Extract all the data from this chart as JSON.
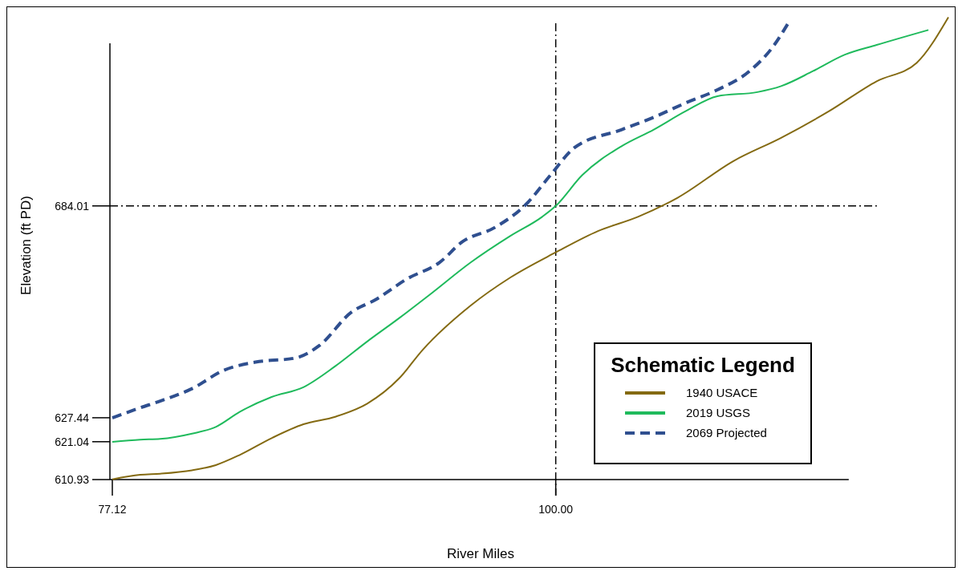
{
  "chart_data": {
    "type": "line",
    "xlabel": "River Miles",
    "ylabel": "Elevation (ft PD)",
    "legend_title": "Schematic Legend",
    "legend": "bottom right",
    "grid": false,
    "xlim": [
      77.12,
      120.3
    ],
    "xticks": [
      77.12,
      {
        "value": 100,
        "label": "100.00"
      }
    ],
    "ylim": [
      610.93,
      736
    ],
    "yticks": [
      610.93,
      621.04,
      627.44,
      684.01
    ],
    "ref_lines": [
      {
        "axis": "x",
        "value": 100,
        "line_style": "dashdot",
        "color": "#000000"
      },
      {
        "axis": "y",
        "value": 684.01,
        "line_style": "dashdot",
        "color": "#000000"
      }
    ],
    "series": [
      {
        "name": "1940 USACE",
        "color": "#846a12",
        "line_style": "solid",
        "x": [
          77.12,
          78.56,
          79.59,
          81.23,
          82.46,
          83.69,
          85.34,
          86.98,
          88.62,
          90.27,
          91.91,
          93.14,
          95.61,
          97.66,
          100.0,
          102.18,
          104.24,
          106.29,
          109.17,
          111.63,
          114.1,
          116.56,
          118.62,
          120.26
        ],
        "values": [
          611.0,
          612.2,
          612.5,
          613.4,
          614.8,
          617.5,
          622.0,
          625.7,
          627.7,
          631.2,
          637.9,
          645.6,
          657.4,
          664.9,
          671.6,
          677.3,
          681.1,
          686.2,
          696.0,
          702.2,
          709.3,
          717.3,
          722.2,
          734.4
        ]
      },
      {
        "name": "2019 USGS",
        "color": "#1fba5c",
        "line_style": "solid",
        "x": [
          77.12,
          78.56,
          79.59,
          81.23,
          82.46,
          83.69,
          85.34,
          86.98,
          88.62,
          90.27,
          91.91,
          93.55,
          95.61,
          97.66,
          99.3,
          100.0,
          101.36,
          103.41,
          105.06,
          106.7,
          108.34,
          110.4,
          111.63,
          113.27,
          114.92,
          116.56,
          119.23
        ],
        "values": [
          621.0,
          621.6,
          621.8,
          623.2,
          625.0,
          629.0,
          633.0,
          635.6,
          641.2,
          647.8,
          654.0,
          660.5,
          668.9,
          676.0,
          681.1,
          684.0,
          692.2,
          700.0,
          704.4,
          709.3,
          713.3,
          714.4,
          716.0,
          720.0,
          724.4,
          727.0,
          731.0
        ]
      },
      {
        "name": "2069 Projected",
        "color": "#2f4f8f",
        "line_style": "dashed",
        "x": [
          77.12,
          78.56,
          79.59,
          81.23,
          82.87,
          84.51,
          86.57,
          87.8,
          89.45,
          90.68,
          92.32,
          94.0,
          95.2,
          96.84,
          98.48,
          99.72,
          100.95,
          103.41,
          105.06,
          106.7,
          108.34,
          110.0,
          111.22,
          112.04
        ],
        "values": [
          627.4,
          630.1,
          631.9,
          635.2,
          640.1,
          642.3,
          643.4,
          646.7,
          655.6,
          658.9,
          664.5,
          668.9,
          674.5,
          678.2,
          684.5,
          692.2,
          699.5,
          704.4,
          707.7,
          711.5,
          715.0,
          720.0,
          726.6,
          733.2
        ]
      }
    ]
  }
}
